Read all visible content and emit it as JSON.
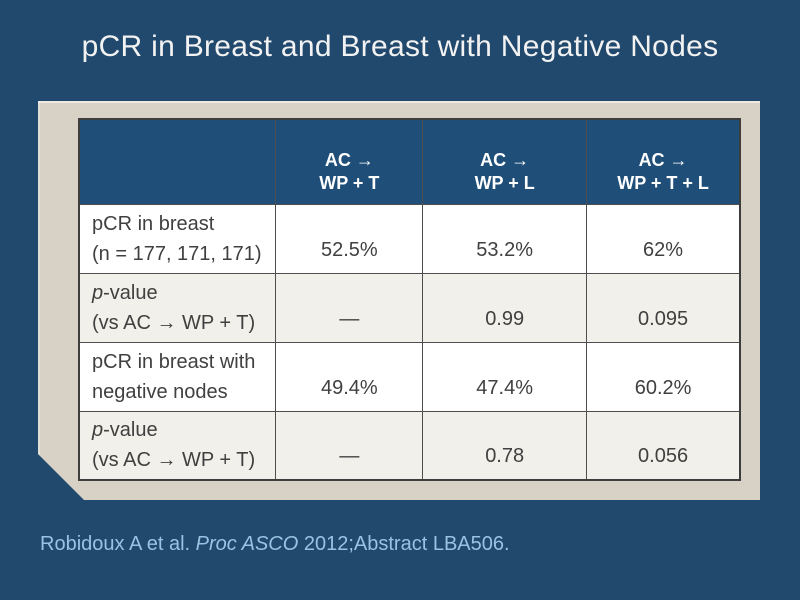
{
  "slide": {
    "title": "pCR in Breast and Breast with Negative Nodes",
    "citation": {
      "prefix": "Robidoux A et al. ",
      "italic_part": "Proc ASCO",
      "suffix": " 2012;Abstract LBA506."
    }
  },
  "table": {
    "columns": [
      {
        "line1": "AC →",
        "line2": "WP + T"
      },
      {
        "line1": "AC →",
        "line2": "WP + L"
      },
      {
        "line1": "AC →",
        "line2": "WP + T + L"
      }
    ],
    "rows": [
      {
        "label_italic": "",
        "label_line1": "pCR in breast",
        "label_line2": "(n = 177, 171, 171)",
        "values": [
          "52.5%",
          "53.2%",
          "62%"
        ]
      },
      {
        "label_italic": "p",
        "label_line1": "-value",
        "label_line2": "(vs AC → WP + T)",
        "values": [
          "—",
          "0.99",
          "0.095"
        ]
      },
      {
        "label_italic": "",
        "label_line1": "pCR in breast with",
        "label_line2": "negative nodes",
        "values": [
          "49.4%",
          "47.4%",
          "60.2%"
        ]
      },
      {
        "label_italic": "p",
        "label_line1": "-value",
        "label_line2": "(vs AC → WP + T)",
        "values": [
          "—",
          "0.78",
          "0.056"
        ]
      }
    ]
  },
  "colors": {
    "background": "#21496D",
    "table_header": "#1F4E79",
    "panel": "#D7D2C5",
    "row_alt": "#F2F0EA",
    "table_text": "#404040",
    "title_text": "#F2F2F2",
    "citation_text": "#9BC2E2"
  }
}
